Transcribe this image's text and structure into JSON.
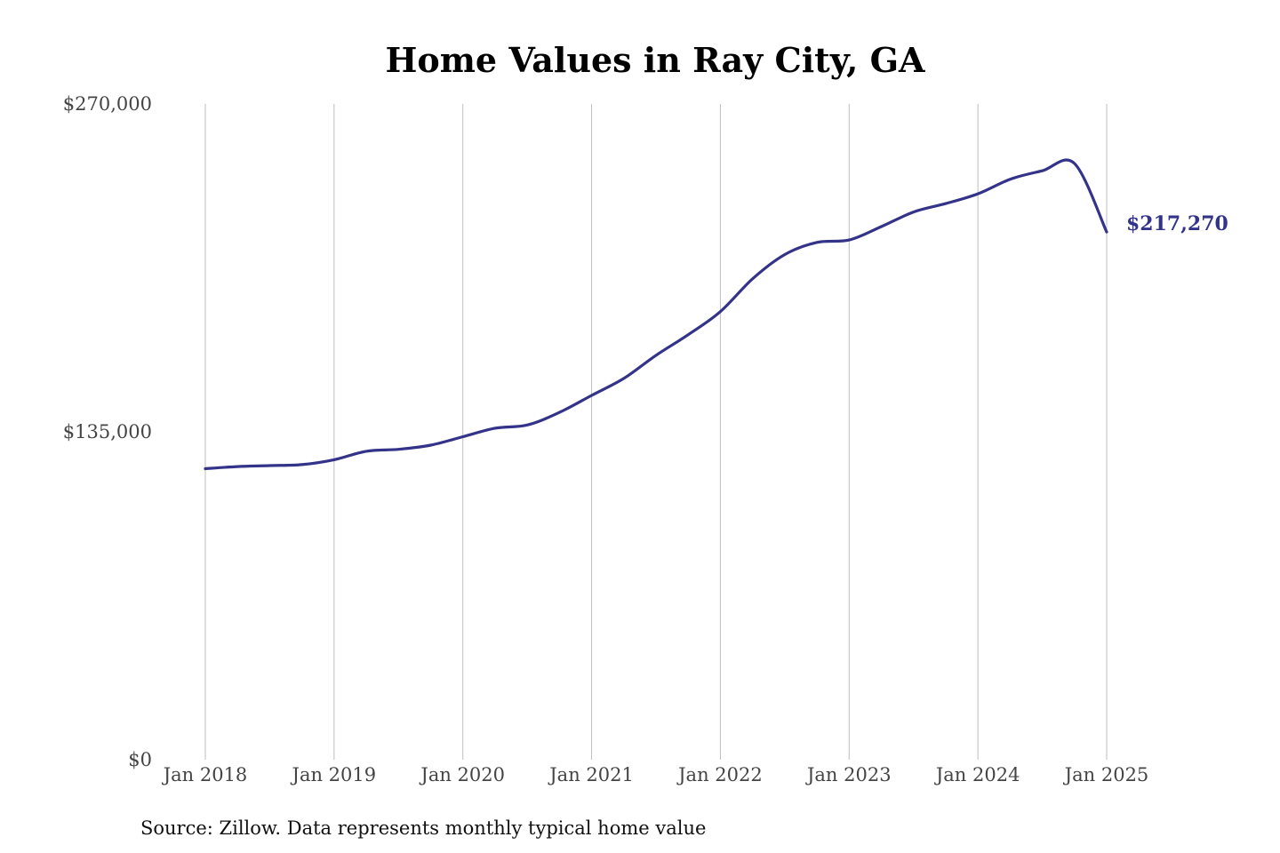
{
  "chart_data": {
    "type": "line",
    "title": "Home Values in Ray City, GA",
    "xlabel": "",
    "ylabel": "",
    "source": "Source: Zillow. Data represents monthly typical home value",
    "ylim": [
      0,
      270000
    ],
    "yticks": [
      {
        "value": 0,
        "label": "$0"
      },
      {
        "value": 135000,
        "label": "$135,000"
      },
      {
        "value": 270000,
        "label": "$270,000"
      }
    ],
    "xticks": [
      {
        "value": "2018-01",
        "label": "Jan 2018"
      },
      {
        "value": "2019-01",
        "label": "Jan 2019"
      },
      {
        "value": "2020-01",
        "label": "Jan 2020"
      },
      {
        "value": "2021-01",
        "label": "Jan 2021"
      },
      {
        "value": "2022-01",
        "label": "Jan 2022"
      },
      {
        "value": "2023-01",
        "label": "Jan 2023"
      },
      {
        "value": "2024-01",
        "label": "Jan 2024"
      },
      {
        "value": "2025-01",
        "label": "Jan 2025"
      }
    ],
    "xlim": [
      "2018-01",
      "2025-01"
    ],
    "grid": "vertical",
    "line_color": "#33338a",
    "end_label": "$217,270",
    "x": [
      "2018-01",
      "2018-04",
      "2018-07",
      "2018-10",
      "2019-01",
      "2019-04",
      "2019-07",
      "2019-10",
      "2020-01",
      "2020-04",
      "2020-07",
      "2020-10",
      "2021-01",
      "2021-04",
      "2021-07",
      "2021-10",
      "2022-01",
      "2022-04",
      "2022-07",
      "2022-10",
      "2023-01",
      "2023-04",
      "2023-07",
      "2023-10",
      "2024-01",
      "2024-04",
      "2024-07",
      "2024-10",
      "2025-01"
    ],
    "values": [
      119800,
      120700,
      121100,
      121500,
      123500,
      127000,
      127800,
      129500,
      133000,
      136500,
      137800,
      143000,
      150000,
      157000,
      166500,
      175000,
      184500,
      198000,
      208000,
      213000,
      214000,
      219500,
      225500,
      229000,
      233000,
      239000,
      242500,
      245500,
      217270
    ]
  }
}
